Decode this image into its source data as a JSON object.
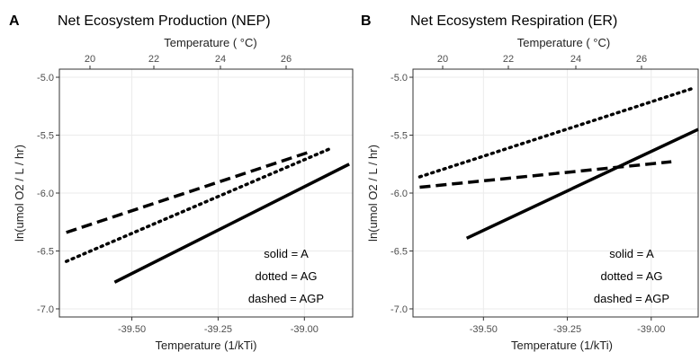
{
  "chart_data": [
    {
      "type": "line",
      "panel_letter": "A",
      "title": "Net Ecosystem Production (NEP)",
      "xlabel": "Temperature (1/kTi)",
      "x2label": "Temperature ( °C)",
      "ylabel": "ln(umol O2 / L / hr)",
      "xlim": [
        -39.71,
        -38.86
      ],
      "ylim": [
        -7.07,
        -4.93
      ],
      "x_ticks": [
        -39.5,
        -39.25,
        -39.0
      ],
      "x_tick_labels": [
        "-39.50",
        "-39.25",
        "-39.00"
      ],
      "top_ticks": [
        20,
        22,
        24,
        26
      ],
      "y_ticks": [
        -5.0,
        -5.5,
        -6.0,
        -6.5,
        -7.0
      ],
      "y_tick_labels": [
        "-5.0",
        "-5.5",
        "-6.0",
        "-6.5",
        "-7.0"
      ],
      "grid": true,
      "series": [
        {
          "name": "A",
          "style": "solid",
          "x": [
            -39.55,
            -38.87
          ],
          "y": [
            -6.77,
            -5.75
          ]
        },
        {
          "name": "AG",
          "style": "dotted",
          "x": [
            -39.69,
            -38.92
          ],
          "y": [
            -6.59,
            -5.61
          ]
        },
        {
          "name": "AGP",
          "style": "dashed",
          "x": [
            -39.69,
            -38.98
          ],
          "y": [
            -6.34,
            -5.64
          ]
        }
      ],
      "legend_lines": [
        "solid = A",
        "dotted = AG",
        "dashed = AGP"
      ],
      "legend_position": "bottom-right"
    },
    {
      "type": "line",
      "panel_letter": "B",
      "title": "Net Ecosystem Respiration (ER)",
      "xlabel": "Temperature (1/kTi)",
      "x2label": "Temperature ( °C)",
      "ylabel": "ln(umol O2 / L / hr)",
      "xlim": [
        -39.71,
        -38.86
      ],
      "ylim": [
        -7.07,
        -4.93
      ],
      "x_ticks": [
        -39.5,
        -39.25,
        -39.0
      ],
      "x_tick_labels": [
        "-39.50",
        "-39.25",
        "-39.00"
      ],
      "top_ticks": [
        20,
        22,
        24,
        26
      ],
      "y_ticks": [
        -5.0,
        -5.5,
        -6.0,
        -6.5,
        -7.0
      ],
      "y_tick_labels": [
        "-5.0",
        "-5.5",
        "-6.0",
        "-6.5",
        "-7.0"
      ],
      "grid": true,
      "series": [
        {
          "name": "A",
          "style": "solid",
          "x": [
            -39.55,
            -38.86
          ],
          "y": [
            -6.39,
            -5.45
          ]
        },
        {
          "name": "AG",
          "style": "dotted",
          "x": [
            -39.69,
            -38.87
          ],
          "y": [
            -5.86,
            -5.09
          ]
        },
        {
          "name": "AGP",
          "style": "dashed",
          "x": [
            -39.69,
            -38.94
          ],
          "y": [
            -5.95,
            -5.73
          ]
        }
      ],
      "legend_lines": [
        "solid = A",
        "dotted = AG",
        "dashed = AGP"
      ],
      "legend_position": "bottom-right"
    }
  ]
}
